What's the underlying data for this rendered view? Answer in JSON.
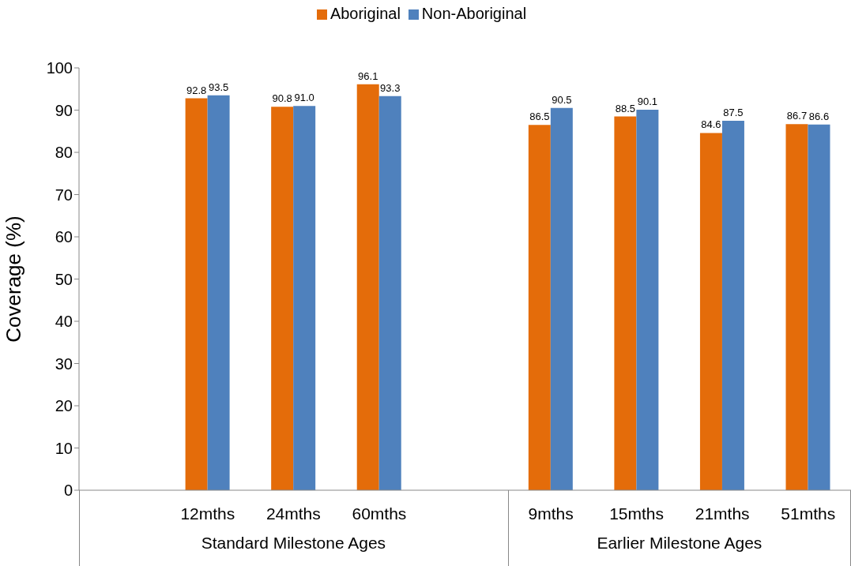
{
  "chart_data": {
    "type": "bar",
    "ylabel": "Coverage (%)",
    "categories": [
      null,
      "12mths",
      "24mths",
      "60mths",
      null,
      "9mths",
      "15mths",
      "21mths",
      "51mths"
    ],
    "series": [
      {
        "name": "Aboriginal",
        "color": "#e46c0a",
        "values": [
          null,
          92.8,
          90.8,
          96.1,
          null,
          86.5,
          88.5,
          84.6,
          86.7
        ],
        "value_labels": [
          null,
          "92.8",
          "90.8",
          "96.1",
          null,
          "86.5",
          "88.5",
          "84.6",
          "86.7"
        ]
      },
      {
        "name": "Non-Aboriginal",
        "color": "#4f81bd",
        "values": [
          null,
          93.5,
          91.0,
          93.3,
          null,
          90.5,
          90.1,
          87.5,
          86.6
        ],
        "value_labels": [
          null,
          "93.5",
          "91.0",
          "93.3",
          null,
          "90.5",
          "90.1",
          "87.5",
          "86.6"
        ]
      }
    ],
    "ylim": [
      0,
      100
    ],
    "yticks": [
      0,
      10,
      20,
      30,
      40,
      50,
      60,
      70,
      80,
      90,
      100
    ],
    "grid": false,
    "legend": "top",
    "annotations": [
      "Standard Milestone Ages",
      "Earlier Milestone Ages"
    ]
  }
}
